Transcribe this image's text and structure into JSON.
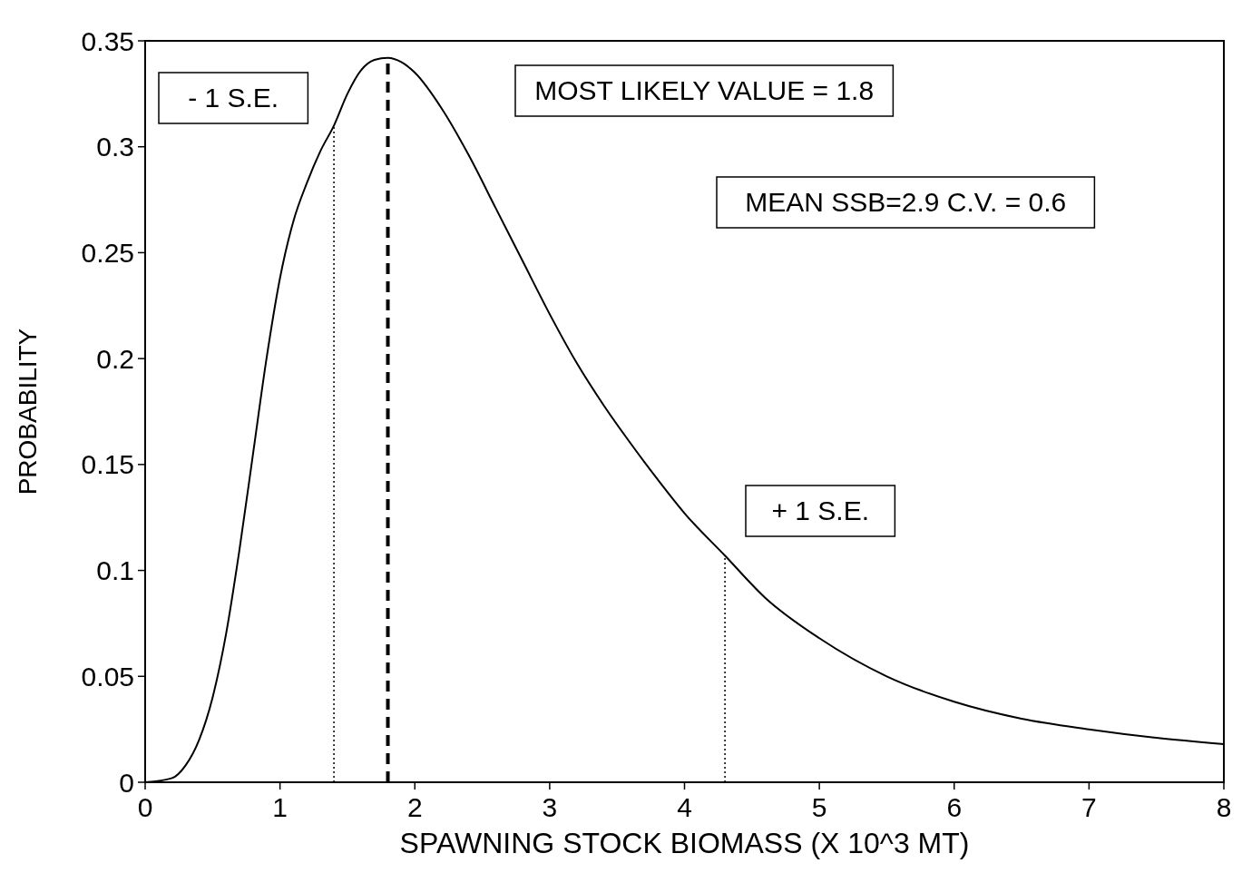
{
  "chart_data": {
    "type": "line",
    "xlabel": "SPAWNING STOCK BIOMASS (X 10^3 MT)",
    "ylabel": "PROBABILITY",
    "xlim": [
      0,
      8
    ],
    "xticks": [
      0,
      1,
      2,
      3,
      4,
      5,
      6,
      7,
      8
    ],
    "ylim": [
      0,
      0.35
    ],
    "yticks": [
      0,
      0.05,
      0.1,
      0.15,
      0.2,
      0.25,
      0.3,
      0.35
    ],
    "grid": false,
    "marker": "none",
    "line_style": "solid",
    "series": [
      {
        "color": "#000000",
        "x": [
          0,
          0.2,
          0.3,
          0.4,
          0.5,
          0.6,
          0.7,
          0.8,
          0.9,
          1.0,
          1.1,
          1.2,
          1.3,
          1.4,
          1.5,
          1.6,
          1.7,
          1.8,
          1.9,
          2.0,
          2.2,
          2.4,
          2.6,
          2.8,
          3.0,
          3.2,
          3.4,
          3.6,
          3.8,
          4.0,
          4.3,
          4.6,
          5.0,
          5.5,
          6.0,
          6.5,
          7.0,
          7.5,
          8.0
        ],
        "values": [
          0,
          0.002,
          0.008,
          0.02,
          0.04,
          0.07,
          0.11,
          0.155,
          0.2,
          0.238,
          0.265,
          0.283,
          0.298,
          0.31,
          0.325,
          0.336,
          0.341,
          0.342,
          0.34,
          0.335,
          0.318,
          0.296,
          0.271,
          0.246,
          0.221,
          0.198,
          0.178,
          0.16,
          0.143,
          0.127,
          0.107,
          0.087,
          0.068,
          0.05,
          0.038,
          0.03,
          0.025,
          0.021,
          0.018
        ]
      }
    ],
    "ref_lines": [
      {
        "axis": "x",
        "value": 1.4,
        "label": "- 1 S.E.",
        "line_style": "dotted",
        "color": "#000000"
      },
      {
        "axis": "x",
        "value": 1.8,
        "line_style": "dashed",
        "color": "#000000"
      },
      {
        "axis": "x",
        "value": 4.3,
        "label": "+ 1 S.E.",
        "line_style": "dotted",
        "color": "#000000"
      }
    ],
    "annotations": [
      "MOST LIKELY VALUE = 1.8",
      "MEAN SSB=2.9 C.V. = 0.6"
    ]
  }
}
